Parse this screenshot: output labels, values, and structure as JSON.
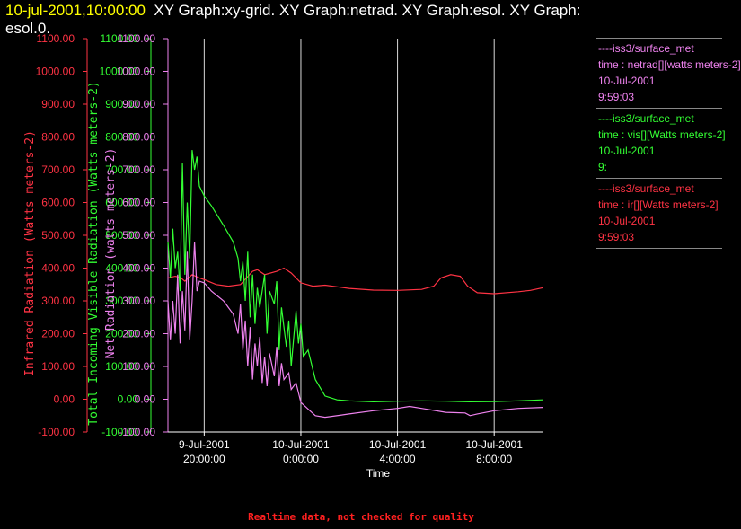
{
  "header": {
    "timestamp": "10-jul-2001,10:00:00",
    "title_rest": "XY Graph:xy-grid.  XY Graph:netrad.  XY Graph:esol.  XY Graph:",
    "title_line2": "esol.0."
  },
  "legend": [
    {
      "color": "#ee82ee",
      "lines": [
        "----iss3/surface_met",
        "time : netrad[][watts meters-2]",
        "10-Jul-2001",
        "9:59:03"
      ]
    },
    {
      "color": "#33ff33",
      "lines": [
        "----iss3/surface_met",
        "time : vis[][Watts meters-2]",
        "10-Jul-2001",
        "9:"
      ]
    },
    {
      "color": "#ff3344",
      "lines": [
        "----iss3/surface_met",
        "time : ir[][Watts meters-2]",
        "10-Jul-2001",
        "9:59:03"
      ]
    }
  ],
  "footer": "Realtime data, not checked for quality",
  "chart_data": {
    "type": "line",
    "xlabel": "Time",
    "x_ticks": [
      {
        "hours": 0,
        "line1": "9-Jul-2001",
        "line2": "20:00:00"
      },
      {
        "hours": 4,
        "line1": "10-Jul-2001",
        "line2": "0:00:00"
      },
      {
        "hours": 8,
        "line1": "10-Jul-2001",
        "line2": "4:00:00"
      },
      {
        "hours": 12,
        "line1": "10-Jul-2001",
        "line2": "8:00:00"
      }
    ],
    "x_range_hours_from_tick0": [
      -1.5,
      14.0
    ],
    "grid": "vertical lines at time ticks",
    "axes": [
      {
        "name": "ir",
        "label": "Infrared Radiation (Watts meters-2)",
        "color": "#ff3344",
        "ylim": [
          -100,
          1100
        ],
        "ticks": [
          "1100.00",
          "1000.00",
          "900.00",
          "800.00",
          "700.00",
          "600.00",
          "500.00",
          "400.00",
          "300.00",
          "200.00",
          "100.00",
          "0.00",
          "-100.00"
        ]
      },
      {
        "name": "vis",
        "label": "Total Incoming Visible Radiation (Watts meters-2)",
        "color": "#33ff33",
        "ylim": [
          -100,
          1100
        ],
        "ticks": [
          "1100.00",
          "1000.00",
          "900.00",
          "800.00",
          "700.00",
          "600.00",
          "500.00",
          "400.00",
          "300.00",
          "200.00",
          "100.00",
          "0.00",
          "-100.00"
        ]
      },
      {
        "name": "netrad",
        "label": "Net Radiation (watts meters-2)",
        "color": "#ee82ee",
        "ylim": [
          -100,
          1100
        ],
        "ticks": [
          "1100.00",
          "1000.00",
          "900.00",
          "800.00",
          "700.00",
          "600.00",
          "500.00",
          "400.00",
          "300.00",
          "200.00",
          "100.00",
          "0.00",
          "-100.00"
        ]
      }
    ],
    "series": [
      {
        "name": "ir",
        "color": "#ff3344",
        "points": [
          [
            -1.5,
            370
          ],
          [
            -1.2,
            375
          ],
          [
            -1.0,
            372
          ],
          [
            -0.8,
            360
          ],
          [
            -0.5,
            380
          ],
          [
            -0.2,
            370
          ],
          [
            0,
            365
          ],
          [
            0.5,
            350
          ],
          [
            1.0,
            345
          ],
          [
            1.5,
            350
          ],
          [
            2.0,
            390
          ],
          [
            2.2,
            395
          ],
          [
            2.5,
            380
          ],
          [
            3.0,
            390
          ],
          [
            3.3,
            400
          ],
          [
            3.6,
            385
          ],
          [
            4.0,
            355
          ],
          [
            4.5,
            345
          ],
          [
            5,
            348
          ],
          [
            6,
            338
          ],
          [
            7,
            333
          ],
          [
            8,
            332
          ],
          [
            9,
            335
          ],
          [
            9.5,
            345
          ],
          [
            9.8,
            370
          ],
          [
            10.2,
            380
          ],
          [
            10.6,
            375
          ],
          [
            10.9,
            345
          ],
          [
            11.3,
            325
          ],
          [
            12,
            322
          ],
          [
            13,
            328
          ],
          [
            13.5,
            332
          ],
          [
            14,
            340
          ]
        ]
      },
      {
        "name": "vis",
        "color": "#33ff33",
        "points": [
          [
            -1.5,
            480
          ],
          [
            -1.4,
            370
          ],
          [
            -1.3,
            520
          ],
          [
            -1.2,
            400
          ],
          [
            -1.1,
            450
          ],
          [
            -1.0,
            330
          ],
          [
            -0.9,
            720
          ],
          [
            -0.8,
            380
          ],
          [
            -0.7,
            600
          ],
          [
            -0.6,
            430
          ],
          [
            -0.5,
            760
          ],
          [
            -0.4,
            700
          ],
          [
            -0.3,
            740
          ],
          [
            -0.2,
            650
          ],
          [
            0,
            620
          ],
          [
            0.3,
            590
          ],
          [
            0.8,
            530
          ],
          [
            1.2,
            480
          ],
          [
            1.4,
            430
          ],
          [
            1.5,
            360
          ],
          [
            1.6,
            420
          ],
          [
            1.7,
            300
          ],
          [
            1.8,
            450
          ],
          [
            1.9,
            250
          ],
          [
            2.0,
            380
          ],
          [
            2.1,
            230
          ],
          [
            2.2,
            340
          ],
          [
            2.3,
            280
          ],
          [
            2.5,
            380
          ],
          [
            2.6,
            200
          ],
          [
            2.7,
            330
          ],
          [
            2.9,
            290
          ],
          [
            3.0,
            360
          ],
          [
            3.1,
            150
          ],
          [
            3.2,
            280
          ],
          [
            3.4,
            160
          ],
          [
            3.5,
            240
          ],
          [
            3.6,
            100
          ],
          [
            3.8,
            270
          ],
          [
            3.9,
            170
          ],
          [
            4.0,
            230
          ],
          [
            4.1,
            130
          ],
          [
            4.3,
            150
          ],
          [
            4.6,
            60
          ],
          [
            5.0,
            10
          ],
          [
            5.5,
            -2
          ],
          [
            6,
            -5
          ],
          [
            7,
            -8
          ],
          [
            8,
            -6
          ],
          [
            9,
            -5
          ],
          [
            10,
            -6
          ],
          [
            11,
            -8
          ],
          [
            12,
            -7
          ],
          [
            13,
            -5
          ],
          [
            14,
            -2
          ]
        ]
      },
      {
        "name": "netrad",
        "color": "#ee82ee",
        "points": [
          [
            -1.5,
            300
          ],
          [
            -1.4,
            180
          ],
          [
            -1.3,
            300
          ],
          [
            -1.2,
            200
          ],
          [
            -1.1,
            380
          ],
          [
            -1.0,
            170
          ],
          [
            -0.9,
            330
          ],
          [
            -0.8,
            210
          ],
          [
            -0.7,
            450
          ],
          [
            -0.6,
            180
          ],
          [
            -0.5,
            300
          ],
          [
            -0.4,
            480
          ],
          [
            -0.3,
            330
          ],
          [
            -0.2,
            360
          ],
          [
            0,
            355
          ],
          [
            0.3,
            330
          ],
          [
            0.8,
            300
          ],
          [
            1.2,
            260
          ],
          [
            1.4,
            200
          ],
          [
            1.5,
            290
          ],
          [
            1.6,
            150
          ],
          [
            1.7,
            240
          ],
          [
            1.8,
            100
          ],
          [
            1.9,
            220
          ],
          [
            2.0,
            60
          ],
          [
            2.1,
            170
          ],
          [
            2.2,
            100
          ],
          [
            2.3,
            190
          ],
          [
            2.4,
            50
          ],
          [
            2.5,
            130
          ],
          [
            2.6,
            40
          ],
          [
            2.7,
            140
          ],
          [
            2.9,
            70
          ],
          [
            3.0,
            160
          ],
          [
            3.1,
            40
          ],
          [
            3.2,
            110
          ],
          [
            3.3,
            60
          ],
          [
            3.5,
            80
          ],
          [
            3.6,
            30
          ],
          [
            3.8,
            50
          ],
          [
            4.0,
            -10
          ],
          [
            4.3,
            -30
          ],
          [
            4.6,
            -50
          ],
          [
            5,
            -55
          ],
          [
            6,
            -45
          ],
          [
            7,
            -35
          ],
          [
            8,
            -28
          ],
          [
            8.5,
            -22
          ],
          [
            9,
            -28
          ],
          [
            10,
            -40
          ],
          [
            10.8,
            -42
          ],
          [
            11.0,
            -50
          ],
          [
            11.3,
            -45
          ],
          [
            12,
            -35
          ],
          [
            13,
            -28
          ],
          [
            14,
            -25
          ]
        ]
      }
    ]
  }
}
